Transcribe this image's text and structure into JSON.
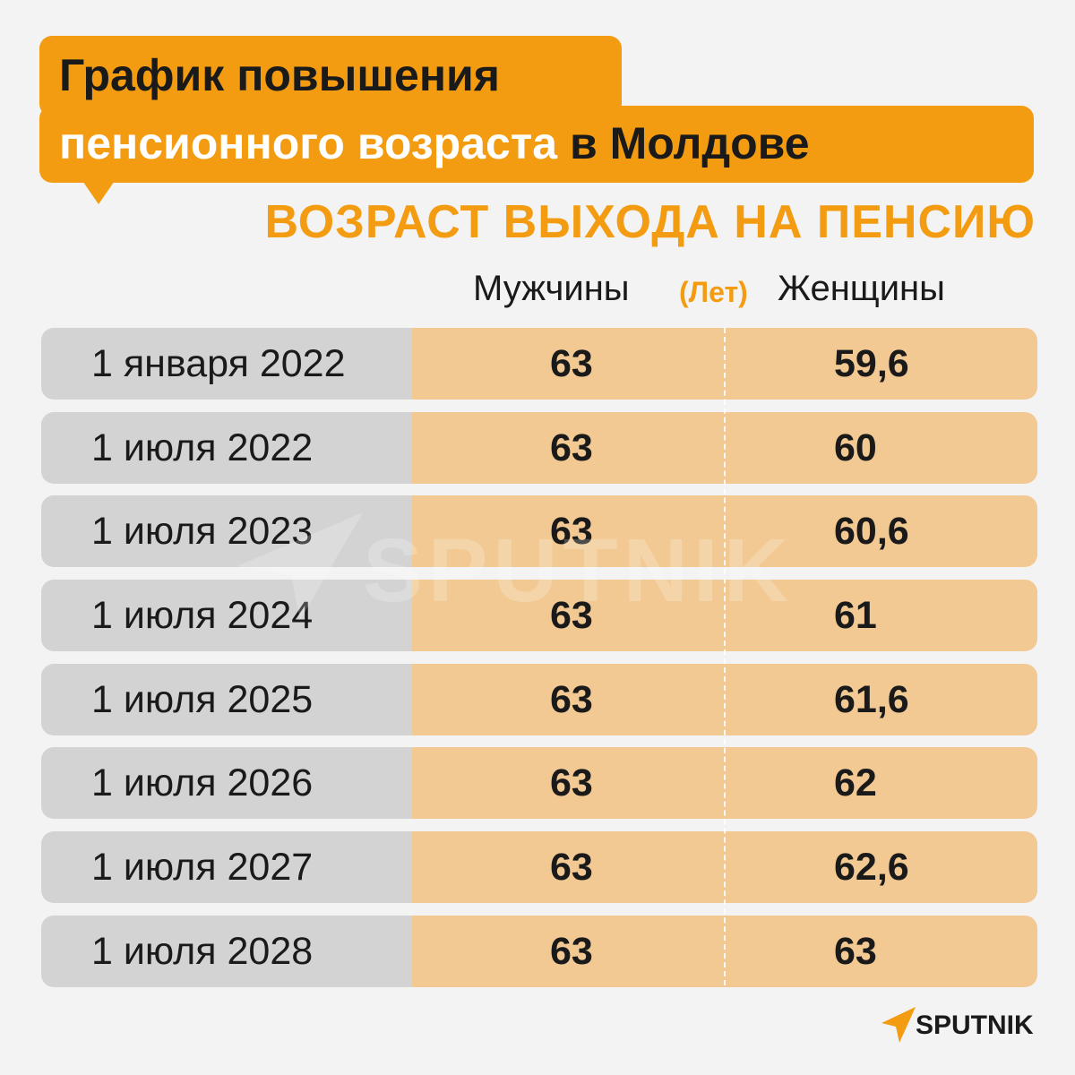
{
  "title": {
    "line1": "График повышения",
    "line2_part1": "пенсионного возраста",
    "line2_part2": " в Молдове"
  },
  "subtitle": "ВОЗРАСТ ВЫХОДА НА ПЕНСИЮ",
  "headers": {
    "men": "Мужчины",
    "unit": "(Лет)",
    "women": "Женщины"
  },
  "chart_data": {
    "type": "table",
    "title": "График повышения пенсионного возраста в Молдове",
    "subtitle": "ВОЗРАСТ ВЫХОДА НА ПЕНСИЮ",
    "columns": [
      "",
      "Мужчины",
      "Женщины"
    ],
    "unit": "(Лет)",
    "rows": [
      {
        "date": "1 января 2022",
        "men": "63",
        "women": "59,6"
      },
      {
        "date": "1 июля 2022",
        "men": "63",
        "women": "60"
      },
      {
        "date": "1 июля 2023",
        "men": "63",
        "women": "60,6"
      },
      {
        "date": "1 июля 2024",
        "men": "63",
        "women": "61"
      },
      {
        "date": "1 июля 2025",
        "men": "63",
        "women": "61,6"
      },
      {
        "date": "1 июля 2026",
        "men": "63",
        "women": "62"
      },
      {
        "date": "1 июля 2027",
        "men": "63",
        "women": "62,6"
      },
      {
        "date": "1 июля 2028",
        "men": "63",
        "women": "63"
      }
    ]
  },
  "watermark": "SPUTNIK",
  "logo": "SPUTNIK",
  "colors": {
    "accent": "#f39c12",
    "date_cell": "#d3d3d3",
    "value_cell": "#f2c992",
    "background": "#f3f3f3"
  }
}
